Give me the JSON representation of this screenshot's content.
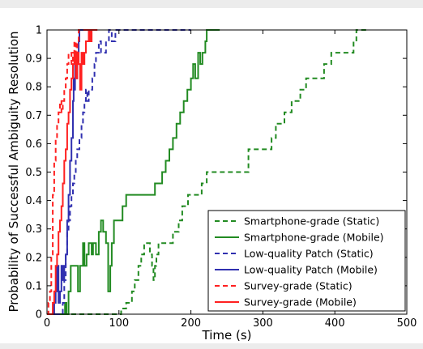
{
  "chart_data": {
    "type": "line",
    "xlabel": "Time (s)",
    "ylabel": "Probability of Successful Ambiguity Resolution",
    "xlim": [
      0,
      500
    ],
    "ylim": [
      0,
      1
    ],
    "xticks": [
      "0",
      "100",
      "200",
      "300",
      "400",
      "500"
    ],
    "yticks": [
      "0",
      "0.1",
      "0.2",
      "0.3",
      "0.4",
      "0.5",
      "0.6",
      "0.7",
      "0.8",
      "0.9",
      "1"
    ],
    "grid": false,
    "legend_position": "bottom-right",
    "series": [
      {
        "name": "Smartphone-grade (Static)",
        "color": "#228B22",
        "dash": true,
        "x": [
          0,
          100,
          103,
          110,
          118,
          122,
          127,
          131,
          135,
          140,
          143,
          146,
          148,
          150,
          152,
          155,
          160,
          170,
          175,
          183,
          188,
          196,
          205,
          215,
          222,
          228,
          250,
          280,
          295,
          312,
          318,
          330,
          340,
          352,
          360,
          370,
          385,
          395,
          420,
          426,
          430,
          445
        ],
        "y": [
          0,
          0,
          0.02,
          0.04,
          0.08,
          0.12,
          0.17,
          0.21,
          0.25,
          0.25,
          0.21,
          0.17,
          0.12,
          0.17,
          0.21,
          0.25,
          0.25,
          0.25,
          0.29,
          0.33,
          0.38,
          0.42,
          0.42,
          0.46,
          0.5,
          0.5,
          0.5,
          0.58,
          0.58,
          0.62,
          0.67,
          0.71,
          0.75,
          0.79,
          0.83,
          0.83,
          0.88,
          0.92,
          0.92,
          0.96,
          1.0,
          1.0
        ]
      },
      {
        "name": "Smartphone-grade (Mobile)",
        "color": "#228B22",
        "dash": false,
        "x": [
          0,
          23,
          25,
          27,
          30,
          33,
          36,
          40,
          43,
          46,
          50,
          52,
          55,
          58,
          60,
          62,
          64,
          66,
          68,
          72,
          75,
          78,
          82,
          85,
          88,
          90,
          93,
          96,
          100,
          105,
          110,
          115,
          120,
          125,
          130,
          135,
          140,
          150,
          160,
          165,
          170,
          175,
          180,
          185,
          190,
          195,
          200,
          203,
          206,
          210,
          213,
          216,
          220,
          222,
          240
        ],
        "y": [
          0,
          0,
          0.04,
          0.0,
          0.08,
          0.17,
          0.17,
          0.17,
          0.08,
          0.17,
          0.25,
          0.17,
          0.21,
          0.25,
          0.25,
          0.21,
          0.25,
          0.25,
          0.21,
          0.29,
          0.33,
          0.29,
          0.25,
          0.08,
          0.17,
          0.25,
          0.33,
          0.33,
          0.33,
          0.38,
          0.42,
          0.42,
          0.42,
          0.42,
          0.42,
          0.42,
          0.42,
          0.46,
          0.5,
          0.54,
          0.58,
          0.62,
          0.67,
          0.71,
          0.75,
          0.79,
          0.83,
          0.88,
          0.83,
          0.92,
          0.88,
          0.92,
          0.96,
          1.0,
          1.0
        ]
      },
      {
        "name": "Low-quality Patch (Static)",
        "color": "#3030B0",
        "dash": true,
        "x": [
          0,
          20,
          22,
          24,
          26,
          28,
          30,
          32,
          34,
          36,
          38,
          40,
          42,
          45,
          48,
          50,
          52,
          54,
          56,
          58,
          60,
          63,
          66,
          68,
          70,
          72,
          75,
          78,
          82,
          86,
          90,
          95,
          100,
          200
        ],
        "y": [
          0,
          0,
          0.04,
          0.12,
          0.21,
          0.29,
          0.33,
          0.38,
          0.42,
          0.46,
          0.5,
          0.54,
          0.58,
          0.62,
          0.67,
          0.71,
          0.75,
          0.79,
          0.75,
          0.79,
          0.79,
          0.83,
          0.88,
          0.92,
          0.92,
          0.96,
          0.92,
          0.92,
          0.96,
          1.0,
          0.96,
          1.0,
          1.0,
          1.0
        ]
      },
      {
        "name": "Low-quality Patch (Mobile)",
        "color": "#3030B0",
        "dash": false,
        "x": [
          0,
          8,
          10,
          12,
          14,
          16,
          18,
          20,
          22,
          24,
          26,
          28,
          30,
          32,
          34,
          36,
          37,
          38,
          39,
          40,
          41,
          42,
          43,
          44,
          45,
          46,
          48,
          50,
          55
        ],
        "y": [
          0,
          0,
          0.04,
          0.08,
          0.17,
          0.04,
          0.08,
          0.17,
          0.12,
          0.17,
          0.21,
          0.33,
          0.42,
          0.54,
          0.62,
          0.75,
          0.83,
          0.79,
          0.88,
          0.92,
          0.83,
          0.88,
          0.92,
          0.96,
          1.0,
          1.0,
          1.0,
          1.0,
          1.0
        ]
      },
      {
        "name": "Survey-grade (Static)",
        "color": "#FF2020",
        "dash": true,
        "x": [
          0,
          2,
          4,
          6,
          8,
          10,
          12,
          14,
          16,
          18,
          20,
          22,
          24,
          26,
          28,
          30,
          32,
          34,
          36,
          38,
          40,
          42,
          44,
          46,
          50,
          55,
          60
        ],
        "y": [
          0,
          0.04,
          0.08,
          0.21,
          0.42,
          0.54,
          0.62,
          0.67,
          0.71,
          0.75,
          0.71,
          0.75,
          0.79,
          0.83,
          0.88,
          0.92,
          0.92,
          0.88,
          0.92,
          0.96,
          0.92,
          0.96,
          1.0,
          1.0,
          1.0,
          1.0,
          1.0
        ]
      },
      {
        "name": "Survey-grade (Mobile)",
        "color": "#FF2020",
        "dash": false,
        "x": [
          0,
          5,
          8,
          10,
          12,
          14,
          16,
          18,
          20,
          22,
          24,
          26,
          28,
          30,
          32,
          34,
          36,
          38,
          40,
          42,
          44,
          46,
          48,
          50,
          52,
          54,
          56,
          58,
          60,
          62,
          65,
          70
        ],
        "y": [
          0,
          0,
          0.04,
          0.08,
          0.17,
          0.21,
          0.29,
          0.33,
          0.38,
          0.46,
          0.54,
          0.58,
          0.67,
          0.71,
          0.79,
          0.83,
          0.88,
          0.92,
          0.83,
          0.92,
          0.88,
          0.79,
          0.92,
          0.88,
          0.92,
          0.96,
          0.96,
          1.0,
          0.96,
          1.0,
          1.0,
          1.0
        ]
      }
    ]
  }
}
